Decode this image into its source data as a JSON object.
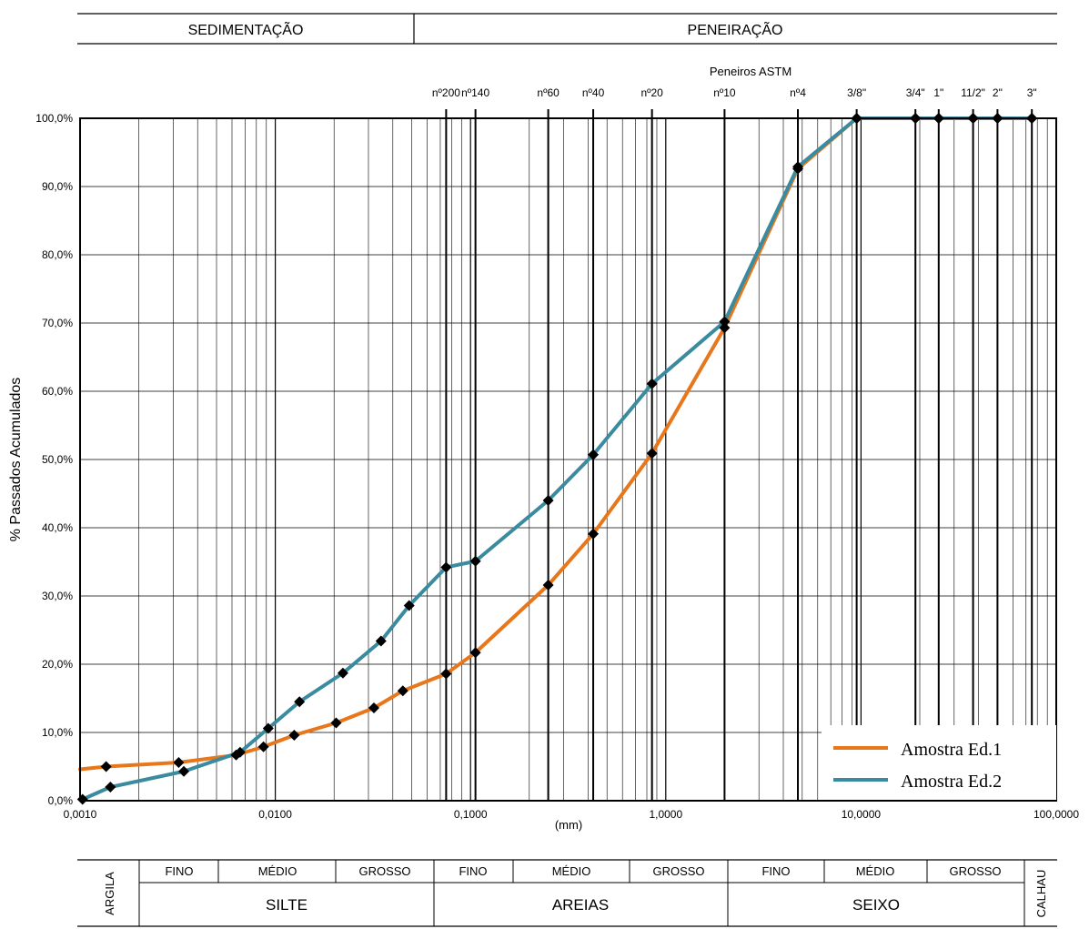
{
  "header": {
    "left": "SEDIMENTAÇÃO",
    "right": "PENEIRAÇÃO"
  },
  "sieves": {
    "title": "Peneiros ASTM",
    "items": [
      {
        "label": "nº200",
        "mm": 0.075
      },
      {
        "label": "nº140",
        "mm": 0.106
      },
      {
        "label": "nº60",
        "mm": 0.25
      },
      {
        "label": "nº40",
        "mm": 0.425
      },
      {
        "label": "nº20",
        "mm": 0.85
      },
      {
        "label": "nº10",
        "mm": 2.0
      },
      {
        "label": "nº4",
        "mm": 4.75
      },
      {
        "label": "3/8\"",
        "mm": 9.5
      },
      {
        "label": "3/4\"",
        "mm": 19.0
      },
      {
        "label": "1\"",
        "mm": 25.0
      },
      {
        "label": "11/2\"",
        "mm": 37.5
      },
      {
        "label": "2\"",
        "mm": 50.0
      },
      {
        "label": "3\"",
        "mm": 75.0
      }
    ]
  },
  "chart_data": {
    "type": "line",
    "x_scale": "log",
    "xlim": [
      0.001,
      100
    ],
    "ylim": [
      0,
      100
    ],
    "xlabel": "(mm)",
    "ylabel": "% Passados Acumulados",
    "x_ticks": [
      {
        "value": 0.001,
        "label": "0,0010"
      },
      {
        "value": 0.01,
        "label": "0,0100"
      },
      {
        "value": 0.1,
        "label": "0,1000"
      },
      {
        "value": 1,
        "label": "1,0000"
      },
      {
        "value": 10,
        "label": "10,0000"
      },
      {
        "value": 100,
        "label": "100,0000"
      }
    ],
    "y_ticks": [
      {
        "value": 0,
        "label": "0,0%"
      },
      {
        "value": 10,
        "label": "10,0%"
      },
      {
        "value": 20,
        "label": "20,0%"
      },
      {
        "value": 30,
        "label": "30,0%"
      },
      {
        "value": 40,
        "label": "40,0%"
      },
      {
        "value": 50,
        "label": "50,0%"
      },
      {
        "value": 60,
        "label": "60,0%"
      },
      {
        "value": 70,
        "label": "70,0%"
      },
      {
        "value": 80,
        "label": "80,0%"
      },
      {
        "value": 90,
        "label": "90,0%"
      },
      {
        "value": 100,
        "label": "100,0%"
      }
    ],
    "grid": true,
    "legend_position": "bottom-right",
    "series": [
      {
        "name": "Amostra Ed.1",
        "color": "#e8771c",
        "start_point": {
          "x": 0.001,
          "y": 4.6
        },
        "points": [
          {
            "x": 0.00136,
            "y": 5.0
          },
          {
            "x": 0.0032,
            "y": 5.6
          },
          {
            "x": 0.0063,
            "y": 6.7
          },
          {
            "x": 0.0087,
            "y": 7.9
          },
          {
            "x": 0.0125,
            "y": 9.6
          },
          {
            "x": 0.0205,
            "y": 11.4
          },
          {
            "x": 0.032,
            "y": 13.6
          },
          {
            "x": 0.045,
            "y": 16.1
          },
          {
            "x": 0.075,
            "y": 18.6
          },
          {
            "x": 0.106,
            "y": 21.7
          },
          {
            "x": 0.25,
            "y": 31.6
          },
          {
            "x": 0.425,
            "y": 39.1
          },
          {
            "x": 0.85,
            "y": 50.9
          },
          {
            "x": 2.0,
            "y": 69.3
          },
          {
            "x": 4.75,
            "y": 92.6
          },
          {
            "x": 9.5,
            "y": 100.0
          },
          {
            "x": 19.0,
            "y": 100.0
          },
          {
            "x": 25.0,
            "y": 100.0
          },
          {
            "x": 37.5,
            "y": 100.0
          },
          {
            "x": 50.0,
            "y": 100.0
          },
          {
            "x": 75.0,
            "y": 100.0
          }
        ]
      },
      {
        "name": "Amostra Ed.2",
        "color": "#3a8ba0",
        "start_point": null,
        "points": [
          {
            "x": 0.00103,
            "y": 0.2
          },
          {
            "x": 0.00143,
            "y": 2.0
          },
          {
            "x": 0.0034,
            "y": 4.3
          },
          {
            "x": 0.0066,
            "y": 7.1
          },
          {
            "x": 0.0092,
            "y": 10.6
          },
          {
            "x": 0.0133,
            "y": 14.5
          },
          {
            "x": 0.0222,
            "y": 18.7
          },
          {
            "x": 0.0348,
            "y": 23.4
          },
          {
            "x": 0.0485,
            "y": 28.6
          },
          {
            "x": 0.075,
            "y": 34.2
          },
          {
            "x": 0.106,
            "y": 35.1
          },
          {
            "x": 0.25,
            "y": 44.0
          },
          {
            "x": 0.425,
            "y": 50.7
          },
          {
            "x": 0.85,
            "y": 61.1
          },
          {
            "x": 2.0,
            "y": 70.2
          },
          {
            "x": 4.75,
            "y": 92.9
          },
          {
            "x": 9.5,
            "y": 100.0
          },
          {
            "x": 19.0,
            "y": 100.0
          },
          {
            "x": 25.0,
            "y": 100.0
          },
          {
            "x": 37.5,
            "y": 100.0
          },
          {
            "x": 50.0,
            "y": 100.0
          },
          {
            "x": 75.0,
            "y": 100.0
          }
        ]
      }
    ]
  },
  "classification": {
    "clay": "ARGILA",
    "boulder": "CALHAU",
    "subclasses": [
      "FINO",
      "MÉDIO",
      "GROSSO",
      "FINO",
      "MÉDIO",
      "GROSSO",
      "FINO",
      "MÉDIO",
      "GROSSO"
    ],
    "groups": [
      "SILTE",
      "AREIAS",
      "SEIXO"
    ]
  }
}
